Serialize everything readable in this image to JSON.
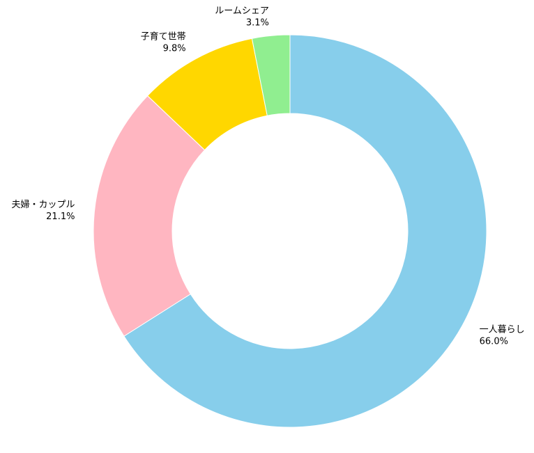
{
  "chart_data": {
    "type": "donut",
    "categories": [
      "一人暮らし",
      "夫婦・カップル",
      "子育て世帯",
      "ルームシェア"
    ],
    "values": [
      66.0,
      21.1,
      9.8,
      3.1
    ],
    "value_labels": [
      "66.0%",
      "21.1%",
      "9.8%",
      "3.1%"
    ],
    "colors": [
      "#87ceeb",
      "#ffb6c1",
      "#ffd700",
      "#90ee90"
    ],
    "start_angle": 90,
    "direction": "clockwise"
  }
}
